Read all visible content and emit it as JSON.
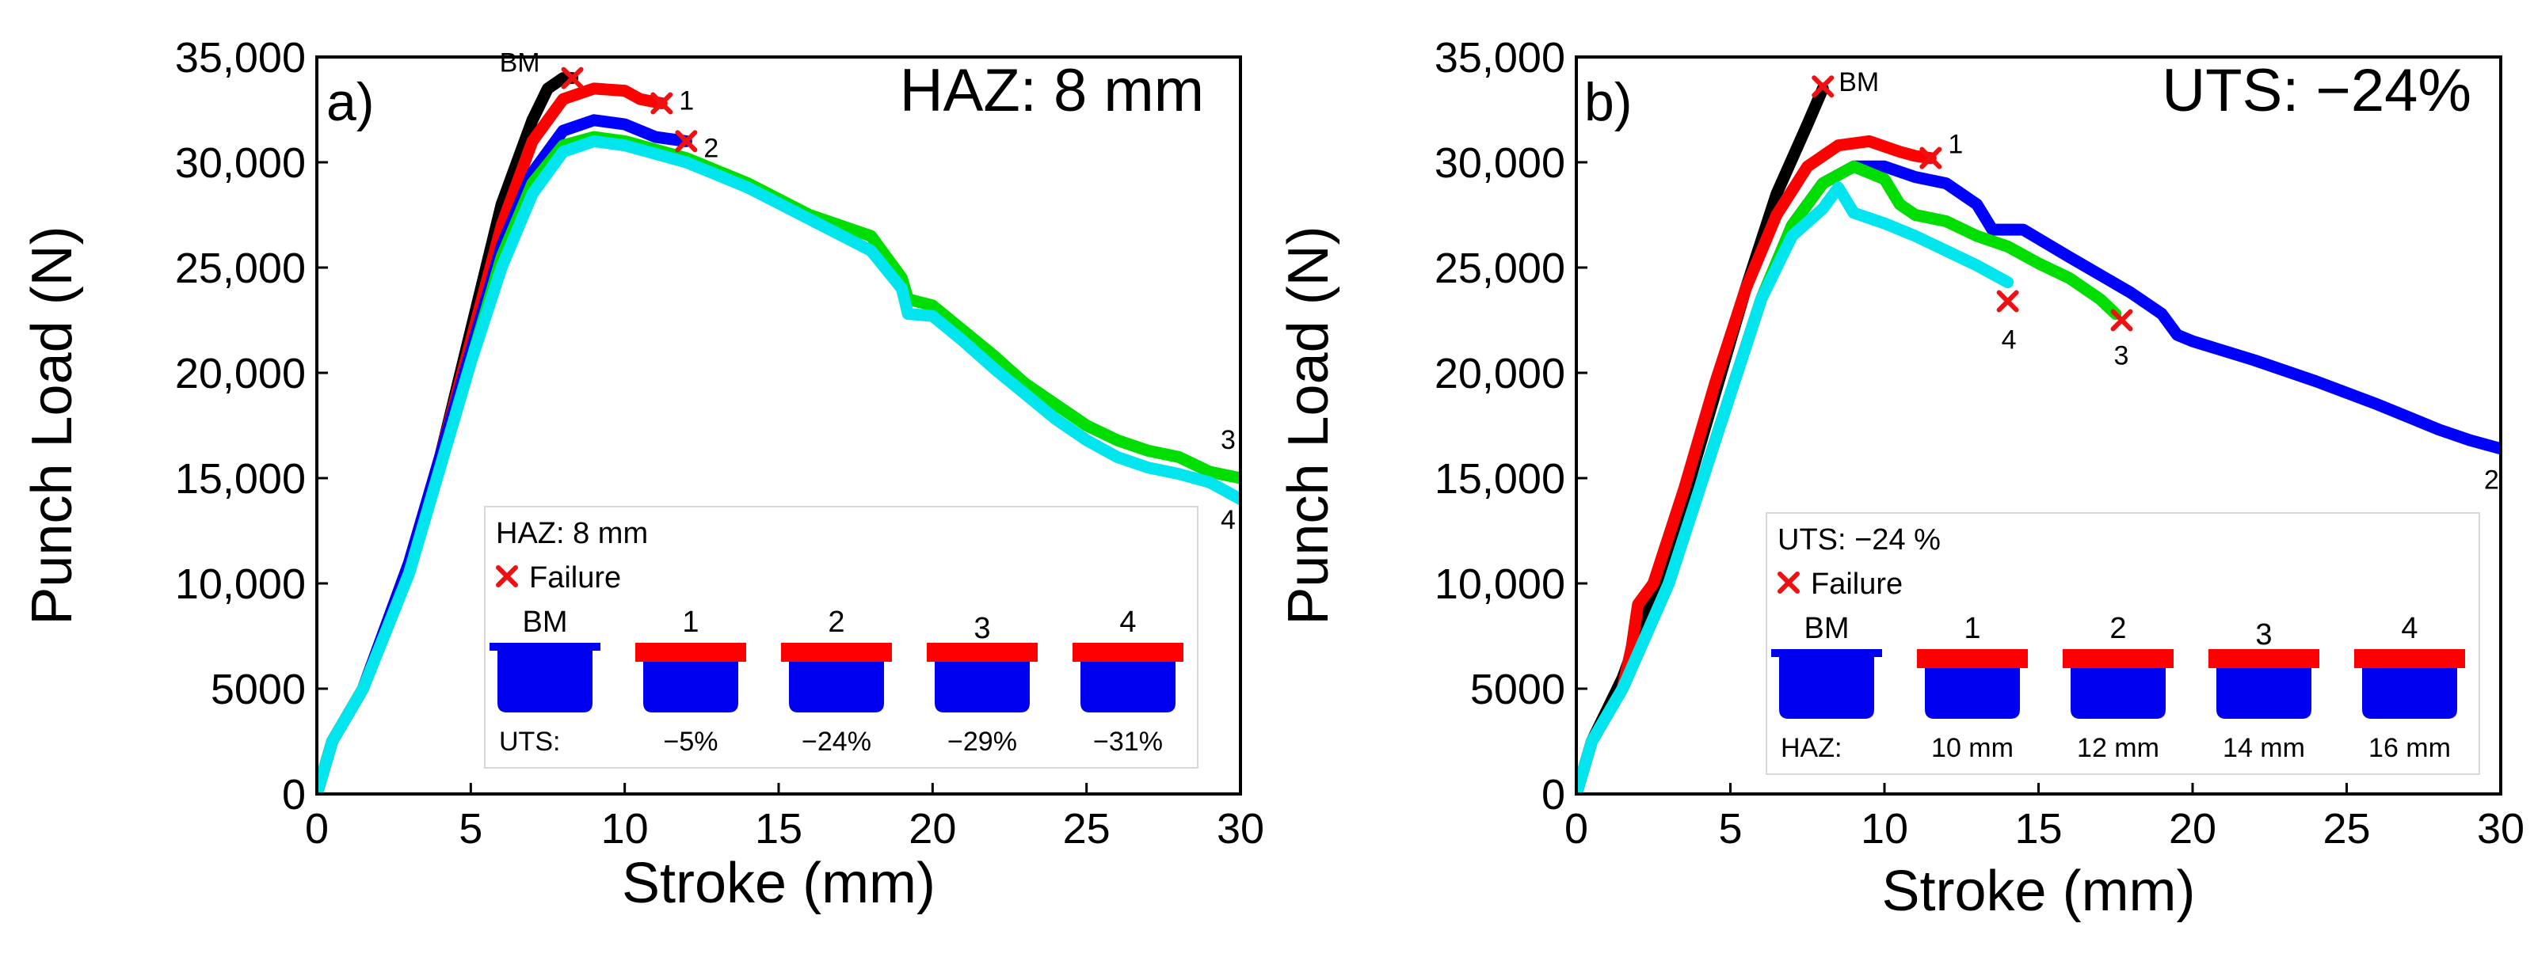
{
  "chart_data": [
    {
      "type": "line",
      "panel_label": "a)",
      "corner_text": "HAZ: 8 mm",
      "xlabel": "Stroke (mm)",
      "ylabel": "Punch Load (N)",
      "xlim": [
        0,
        30
      ],
      "ylim": [
        0,
        35000
      ],
      "x_ticks": [
        "0",
        "5",
        "10",
        "15",
        "20",
        "25",
        "30"
      ],
      "y_ticks": [
        "0",
        "5000",
        "10,000",
        "15,000",
        "20,000",
        "25,000",
        "30,000",
        "35,000"
      ],
      "series": [
        {
          "name": "BM",
          "color": "#000000",
          "end_label": "BM",
          "points": [
            [
              0,
              0
            ],
            [
              0.5,
              2500
            ],
            [
              1.5,
              5000
            ],
            [
              3,
              11000
            ],
            [
              4,
              16000
            ],
            [
              5,
              22000
            ],
            [
              6,
              28000
            ],
            [
              7,
              32000
            ],
            [
              7.5,
              33500
            ],
            [
              8,
              34000
            ],
            [
              8.3,
              34000
            ]
          ]
        },
        {
          "name": "1",
          "color": "#ff0000",
          "end_label": "1",
          "points": [
            [
              0,
              0
            ],
            [
              0.5,
              2500
            ],
            [
              1.5,
              5000
            ],
            [
              3,
              11000
            ],
            [
              4,
              16000
            ],
            [
              5,
              21500
            ],
            [
              6,
              27000
            ],
            [
              7,
              31000
            ],
            [
              8,
              33000
            ],
            [
              9,
              33500
            ],
            [
              10,
              33400
            ],
            [
              10.5,
              33000
            ],
            [
              11.2,
              32800
            ]
          ]
        },
        {
          "name": "2",
          "color": "#0000ff",
          "end_label": "2",
          "points": [
            [
              0,
              0
            ],
            [
              0.5,
              2500
            ],
            [
              1.5,
              5000
            ],
            [
              3,
              11000
            ],
            [
              4,
              16000
            ],
            [
              5,
              21000
            ],
            [
              6,
              26000
            ],
            [
              7,
              29500
            ],
            [
              8,
              31500
            ],
            [
              9,
              32000
            ],
            [
              10,
              31800
            ],
            [
              11,
              31200
            ],
            [
              12,
              31000
            ]
          ]
        },
        {
          "name": "3",
          "color": "#00dd00",
          "end_label": "3",
          "points": [
            [
              0,
              0
            ],
            [
              0.5,
              2500
            ],
            [
              1.5,
              5000
            ],
            [
              3,
              10500
            ],
            [
              4,
              15500
            ],
            [
              5,
              20500
            ],
            [
              6,
              25500
            ],
            [
              7,
              29000
            ],
            [
              8,
              30800
            ],
            [
              9,
              31200
            ],
            [
              10,
              31000
            ],
            [
              12,
              30200
            ],
            [
              14,
              29000
            ],
            [
              16,
              27500
            ],
            [
              18,
              26500
            ],
            [
              19,
              24500
            ],
            [
              19.2,
              23500
            ],
            [
              20,
              23200
            ],
            [
              21,
              22000
            ],
            [
              22,
              20800
            ],
            [
              23,
              19500
            ],
            [
              24,
              18500
            ],
            [
              25,
              17500
            ],
            [
              26,
              16800
            ],
            [
              27,
              16300
            ],
            [
              28,
              16000
            ],
            [
              29,
              15300
            ],
            [
              30,
              15000
            ]
          ]
        },
        {
          "name": "4",
          "color": "#00e5ee",
          "end_label": "4",
          "points": [
            [
              0,
              0
            ],
            [
              0.5,
              2500
            ],
            [
              1.5,
              5000
            ],
            [
              3,
              10500
            ],
            [
              4,
              15500
            ],
            [
              5,
              20500
            ],
            [
              6,
              25000
            ],
            [
              7,
              28500
            ],
            [
              8,
              30500
            ],
            [
              9,
              31000
            ],
            [
              10,
              30800
            ],
            [
              12,
              30000
            ],
            [
              14,
              28800
            ],
            [
              16,
              27300
            ],
            [
              18,
              25800
            ],
            [
              19,
              24000
            ],
            [
              19.2,
              22800
            ],
            [
              20,
              22700
            ],
            [
              21,
              21500
            ],
            [
              22,
              20200
            ],
            [
              23,
              19000
            ],
            [
              24,
              17800
            ],
            [
              25,
              16800
            ],
            [
              26,
              16000
            ],
            [
              27,
              15500
            ],
            [
              28,
              15200
            ],
            [
              29,
              14800
            ],
            [
              30,
              14000
            ]
          ]
        }
      ],
      "failure_marks": [
        {
          "label": "BM",
          "x": 8.3,
          "y": 34000
        },
        {
          "label": "1",
          "x": 11.2,
          "y": 32800
        },
        {
          "label": "2",
          "x": 12.0,
          "y": 31000
        }
      ],
      "free_end_labels": [
        {
          "label": "3",
          "x": 29.6,
          "y": 16400
        },
        {
          "label": "4",
          "x": 29.6,
          "y": 12600
        }
      ],
      "legend": {
        "title": "HAZ: 8 mm",
        "failure_label": "Failure",
        "row_prefix": "UTS:",
        "specimens": [
          {
            "label": "BM",
            "value": ""
          },
          {
            "label": "1",
            "value": "−5%"
          },
          {
            "label": "2",
            "value": "−24%"
          },
          {
            "label": "3",
            "value": "−29%"
          },
          {
            "label": "4",
            "value": "−31%"
          }
        ]
      }
    },
    {
      "type": "line",
      "panel_label": "b)",
      "corner_text": "UTS: −24%",
      "xlabel": "Stroke (mm)",
      "ylabel": "Punch Load (N)",
      "xlim": [
        0,
        30
      ],
      "ylim": [
        0,
        35000
      ],
      "x_ticks": [
        "0",
        "5",
        "10",
        "15",
        "20",
        "25",
        "30"
      ],
      "y_ticks": [
        "0",
        "5000",
        "10,000",
        "15,000",
        "20,000",
        "25,000",
        "30,000",
        "35,000"
      ],
      "series": [
        {
          "name": "BM",
          "color": "#000000",
          "end_label": "BM",
          "points": [
            [
              0,
              0
            ],
            [
              0.5,
              2500
            ],
            [
              1.5,
              5500
            ],
            [
              2.5,
              9500
            ],
            [
              3.5,
              14000
            ],
            [
              4.5,
              19000
            ],
            [
              5.5,
              24000
            ],
            [
              6.5,
              28500
            ],
            [
              7.5,
              31800
            ],
            [
              8,
              33500
            ]
          ]
        },
        {
          "name": "1",
          "color": "#ff0000",
          "end_label": "1",
          "points": [
            [
              0,
              0
            ],
            [
              0.5,
              2500
            ],
            [
              1.5,
              5000
            ],
            [
              1.8,
              7000
            ],
            [
              2,
              9000
            ],
            [
              2.5,
              10000
            ],
            [
              3.5,
              14500
            ],
            [
              4.5,
              19500
            ],
            [
              5.5,
              24000
            ],
            [
              6.5,
              27500
            ],
            [
              7.5,
              29800
            ],
            [
              8.5,
              30800
            ],
            [
              9.5,
              31000
            ],
            [
              10.5,
              30500
            ],
            [
              11,
              30300
            ],
            [
              11.5,
              30200
            ]
          ]
        },
        {
          "name": "2",
          "color": "#0000ff",
          "end_label": "2",
          "points": [
            [
              0,
              0
            ],
            [
              0.5,
              2500
            ],
            [
              1.5,
              5000
            ],
            [
              3,
              10000
            ],
            [
              4,
              14500
            ],
            [
              5,
              19000
            ],
            [
              6,
              23500
            ],
            [
              7,
              27000
            ],
            [
              8,
              29000
            ],
            [
              9,
              29800
            ],
            [
              10,
              29800
            ],
            [
              11,
              29300
            ],
            [
              12,
              29000
            ],
            [
              13,
              28000
            ],
            [
              13.5,
              26800
            ],
            [
              14.5,
              26800
            ],
            [
              16,
              25500
            ],
            [
              18,
              23800
            ],
            [
              19,
              22800
            ],
            [
              19.5,
              21800
            ],
            [
              20,
              21500
            ],
            [
              22,
              20600
            ],
            [
              24,
              19600
            ],
            [
              26,
              18500
            ],
            [
              28,
              17300
            ],
            [
              29,
              16800
            ],
            [
              30,
              16400
            ]
          ]
        },
        {
          "name": "3",
          "color": "#00dd00",
          "end_label": "3",
          "points": [
            [
              0,
              0
            ],
            [
              0.5,
              2500
            ],
            [
              1.5,
              5000
            ],
            [
              3,
              10000
            ],
            [
              4,
              14500
            ],
            [
              5,
              19000
            ],
            [
              6,
              23500
            ],
            [
              7,
              27000
            ],
            [
              8,
              29000
            ],
            [
              9,
              29800
            ],
            [
              10,
              29200
            ],
            [
              10.5,
              28000
            ],
            [
              11,
              27500
            ],
            [
              12,
              27200
            ],
            [
              13,
              26500
            ],
            [
              14,
              26000
            ],
            [
              15,
              25200
            ],
            [
              16,
              24500
            ],
            [
              17,
              23500
            ],
            [
              17.5,
              22800
            ]
          ]
        },
        {
          "name": "4",
          "color": "#00e5ee",
          "end_label": "4",
          "points": [
            [
              0,
              0
            ],
            [
              0.5,
              2500
            ],
            [
              1.5,
              5000
            ],
            [
              3,
              10000
            ],
            [
              4,
              14500
            ],
            [
              5,
              19000
            ],
            [
              6,
              23500
            ],
            [
              7,
              26500
            ],
            [
              8,
              27800
            ],
            [
              8.5,
              28800
            ],
            [
              9,
              27600
            ],
            [
              10,
              27100
            ],
            [
              11,
              26500
            ],
            [
              12,
              25800
            ],
            [
              13,
              25100
            ],
            [
              13.5,
              24700
            ],
            [
              14,
              24300
            ]
          ]
        }
      ],
      "failure_marks": [
        {
          "label": "BM",
          "x": 8.0,
          "y": 33600
        },
        {
          "label": "1",
          "x": 11.5,
          "y": 30200
        },
        {
          "label": "3",
          "x": 17.7,
          "y": 22500
        },
        {
          "label": "4",
          "x": 14.0,
          "y": 23400
        }
      ],
      "free_end_labels": [
        {
          "label": "2",
          "x": 29.7,
          "y": 14500
        }
      ],
      "legend": {
        "title": "UTS: −24 %",
        "failure_label": "Failure",
        "row_prefix": "HAZ:",
        "specimens": [
          {
            "label": "BM",
            "value": ""
          },
          {
            "label": "1",
            "value": "10 mm"
          },
          {
            "label": "2",
            "value": "12 mm"
          },
          {
            "label": "3",
            "value": "14 mm"
          },
          {
            "label": "4",
            "value": "16 mm"
          }
        ]
      }
    }
  ]
}
